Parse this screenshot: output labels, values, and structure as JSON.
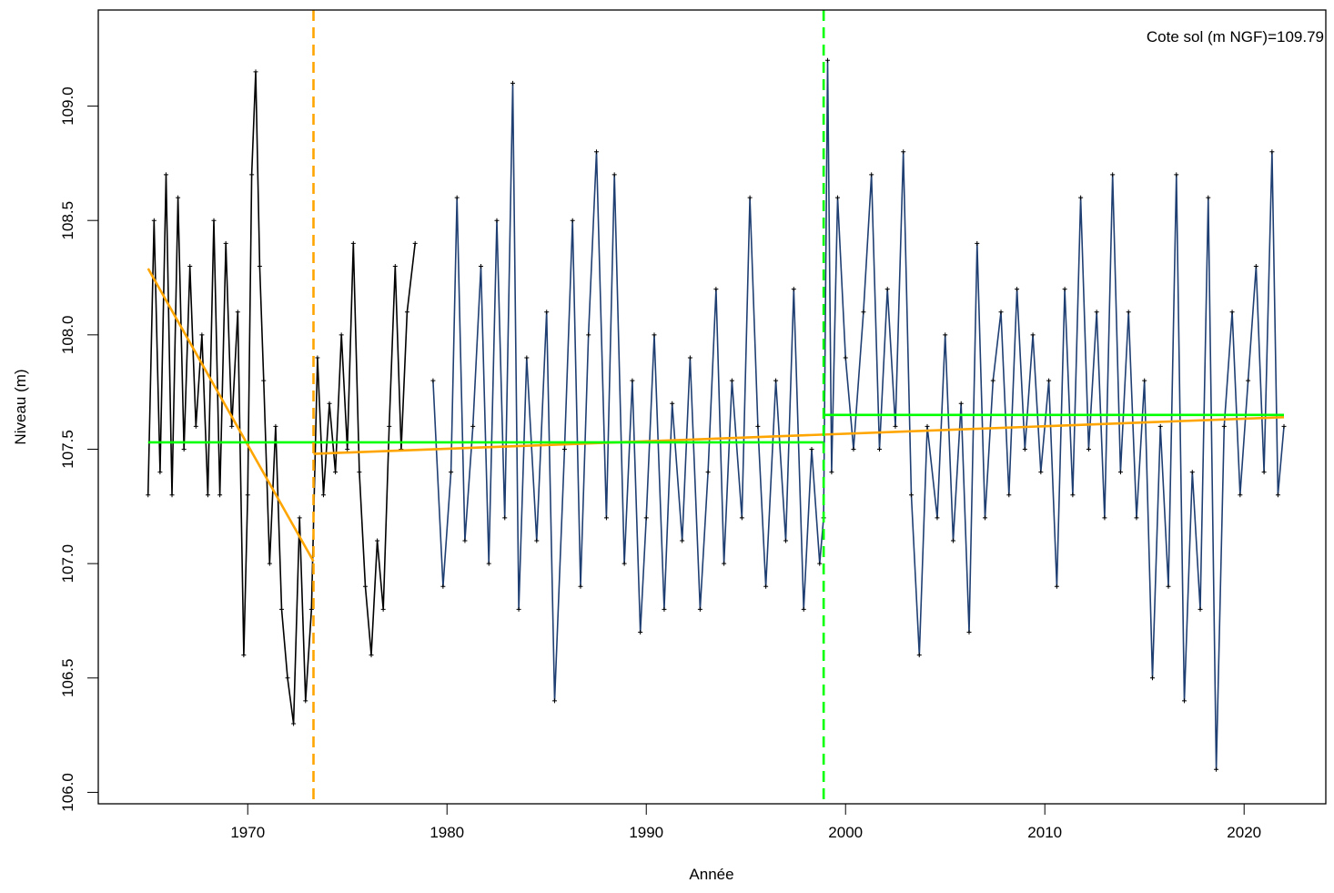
{
  "chart_data": {
    "type": "line",
    "title": "",
    "xlabel": "Année",
    "ylabel": "Niveau (m)",
    "annotation": "Cote sol (m NGF)=109.79",
    "xlim": [
      1962.5,
      2024.1
    ],
    "ylim": [
      105.95,
      109.42
    ],
    "x_ticks": [
      "1970",
      "1980",
      "1990",
      "2000",
      "2010",
      "2020"
    ],
    "y_ticks": [
      "106.0",
      "106.5",
      "107.0",
      "107.5",
      "108.0",
      "108.5",
      "109.0"
    ],
    "grid": false,
    "series": [
      {
        "color": "#000000",
        "x_range": [
          1965.0,
          1978.4
        ],
        "x": [
          1965.0,
          1965.3,
          1965.6,
          1965.9,
          1966.2,
          1966.5,
          1966.8,
          1967.1,
          1967.4,
          1967.7,
          1968.0,
          1968.3,
          1968.6,
          1968.9,
          1969.2,
          1969.5,
          1969.8,
          1970.0,
          1970.2,
          1970.4,
          1970.6,
          1970.8,
          1971.1,
          1971.4,
          1971.7,
          1972.0,
          1972.3,
          1972.6,
          1972.9,
          1973.2,
          1973.5,
          1973.8,
          1974.1,
          1974.4,
          1974.7,
          1975.0,
          1975.3,
          1975.6,
          1975.9,
          1976.2,
          1976.5,
          1976.8,
          1977.1,
          1977.4,
          1977.7,
          1978.0,
          1978.4
        ],
        "y": [
          107.3,
          108.5,
          107.4,
          108.7,
          107.3,
          108.6,
          107.5,
          108.3,
          107.6,
          108.0,
          107.3,
          108.5,
          107.3,
          108.4,
          107.6,
          108.1,
          106.6,
          107.3,
          108.7,
          109.15,
          108.3,
          107.8,
          107.0,
          107.6,
          106.8,
          106.5,
          106.3,
          107.2,
          106.4,
          106.8,
          107.9,
          107.3,
          107.7,
          107.4,
          108.0,
          107.5,
          108.4,
          107.4,
          106.9,
          106.6,
          107.1,
          106.8,
          107.6,
          108.3,
          107.5,
          108.1,
          108.4
        ]
      },
      {
        "color": "#1f3f73",
        "x_range": [
          1979.3,
          2022.0
        ],
        "x": [
          1979.3,
          1979.8,
          1980.2,
          1980.5,
          1980.9,
          1981.3,
          1981.7,
          1982.1,
          1982.5,
          1982.9,
          1983.3,
          1983.6,
          1984.0,
          1984.5,
          1985.0,
          1985.4,
          1985.9,
          1986.3,
          1986.7,
          1987.1,
          1987.5,
          1988.0,
          1988.4,
          1988.9,
          1989.3,
          1989.7,
          1990.0,
          1990.4,
          1990.9,
          1991.3,
          1991.8,
          1992.2,
          1992.7,
          1993.1,
          1993.5,
          1993.9,
          1994.3,
          1994.8,
          1995.2,
          1995.6,
          1996.0,
          1996.5,
          1997.0,
          1997.4,
          1997.9,
          1998.3,
          1998.7,
          1998.9,
          1999.1,
          1999.3,
          1999.6,
          2000.0,
          2000.4,
          2000.9,
          2001.3,
          2001.7,
          2002.1,
          2002.5,
          2002.9,
          2003.3,
          2003.7,
          2004.1,
          2004.6,
          2005.0,
          2005.4,
          2005.8,
          2006.2,
          2006.6,
          2007.0,
          2007.4,
          2007.8,
          2008.2,
          2008.6,
          2009.0,
          2009.4,
          2009.8,
          2010.2,
          2010.6,
          2011.0,
          2011.4,
          2011.8,
          2012.2,
          2012.6,
          2013.0,
          2013.4,
          2013.8,
          2014.2,
          2014.6,
          2015.0,
          2015.4,
          2015.8,
          2016.2,
          2016.6,
          2017.0,
          2017.4,
          2017.8,
          2018.2,
          2018.6,
          2019.0,
          2019.4,
          2019.8,
          2020.2,
          2020.6,
          2021.0,
          2021.4,
          2021.7,
          2022.0
        ],
        "y": [
          107.8,
          106.9,
          107.4,
          108.6,
          107.1,
          107.6,
          108.3,
          107.0,
          108.5,
          107.2,
          109.1,
          106.8,
          107.9,
          107.1,
          108.1,
          106.4,
          107.5,
          108.5,
          106.9,
          108.0,
          108.8,
          107.2,
          108.7,
          107.0,
          107.8,
          106.7,
          107.2,
          108.0,
          106.8,
          107.7,
          107.1,
          107.9,
          106.8,
          107.4,
          108.2,
          107.0,
          107.8,
          107.2,
          108.6,
          107.6,
          106.9,
          107.8,
          107.1,
          108.2,
          106.8,
          107.5,
          107.0,
          107.2,
          109.2,
          107.4,
          108.6,
          107.9,
          107.5,
          108.1,
          108.7,
          107.5,
          108.2,
          107.6,
          108.8,
          107.3,
          106.6,
          107.6,
          107.2,
          108.0,
          107.1,
          107.7,
          106.7,
          108.4,
          107.2,
          107.8,
          108.1,
          107.3,
          108.2,
          107.5,
          108.0,
          107.4,
          107.8,
          106.9,
          108.2,
          107.3,
          108.6,
          107.5,
          108.1,
          107.2,
          108.7,
          107.4,
          108.1,
          107.2,
          107.8,
          106.5,
          107.6,
          106.9,
          108.7,
          106.4,
          107.4,
          106.8,
          108.6,
          106.1,
          107.6,
          108.1,
          107.3,
          107.8,
          108.3,
          107.4,
          108.8,
          107.3,
          107.6
        ]
      }
    ],
    "reference_lines": [
      {
        "type": "trend",
        "color": "#ffa500",
        "x": [
          1965.0,
          1973.3
        ],
        "y": [
          108.29,
          107.01
        ]
      },
      {
        "type": "trend",
        "color": "#ffa500",
        "x": [
          1973.3,
          2022.0
        ],
        "y": [
          107.48,
          107.64
        ]
      },
      {
        "type": "mean",
        "color": "#00ff00",
        "x": [
          1965.0,
          1998.9
        ],
        "y": [
          107.53,
          107.53
        ]
      },
      {
        "type": "mean",
        "color": "#00ff00",
        "x": [
          1998.9,
          2022.0
        ],
        "y": [
          107.65,
          107.65
        ]
      }
    ],
    "breakpoints": [
      {
        "x": 1973.3,
        "color": "#ffa500",
        "style": "dashed"
      },
      {
        "x": 1998.9,
        "color": "#00ff00",
        "style": "dashed"
      }
    ]
  }
}
